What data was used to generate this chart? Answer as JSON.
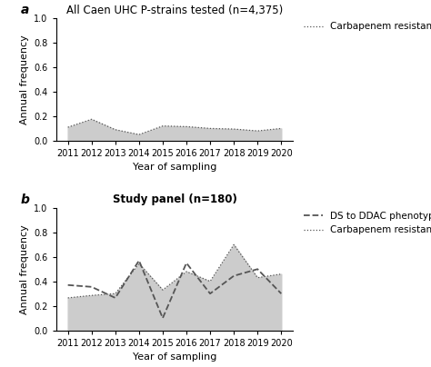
{
  "years": [
    2011,
    2012,
    2013,
    2014,
    2015,
    2016,
    2017,
    2018,
    2019,
    2020
  ],
  "panel_a": {
    "title": "All Caen UHC P-strains tested (n=4,375)",
    "carbapenem": [
      0.11,
      0.175,
      0.09,
      0.05,
      0.12,
      0.115,
      0.1,
      0.095,
      0.08,
      0.1
    ],
    "legend_label": "Carbapenem resistance phenotype"
  },
  "panel_b": {
    "title": "Study panel (n=180)",
    "ds_ddac": [
      0.37,
      0.355,
      0.265,
      0.57,
      0.1,
      0.55,
      0.3,
      0.445,
      0.5,
      0.3
    ],
    "carbapenem": [
      0.265,
      0.285,
      0.3,
      0.545,
      0.33,
      0.48,
      0.4,
      0.7,
      0.43,
      0.46
    ],
    "legend_ds": "DS to DDAC phenotype",
    "legend_carbapenem": "Carbapenem resistance phenotype"
  },
  "ylabel": "Annual frequency",
  "xlabel": "Year of sampling",
  "ylim": [
    0.0,
    1.0
  ],
  "yticks": [
    0.0,
    0.2,
    0.4,
    0.6,
    0.8,
    1.0
  ],
  "fill_color": "#cccccc",
  "fill_alpha": 1.0,
  "line_color": "#555555",
  "bg_color": "#ffffff",
  "panel_label_fontsize": 10,
  "title_fontsize": 8.5,
  "axis_label_fontsize": 8,
  "tick_fontsize": 7,
  "legend_fontsize": 7.5
}
